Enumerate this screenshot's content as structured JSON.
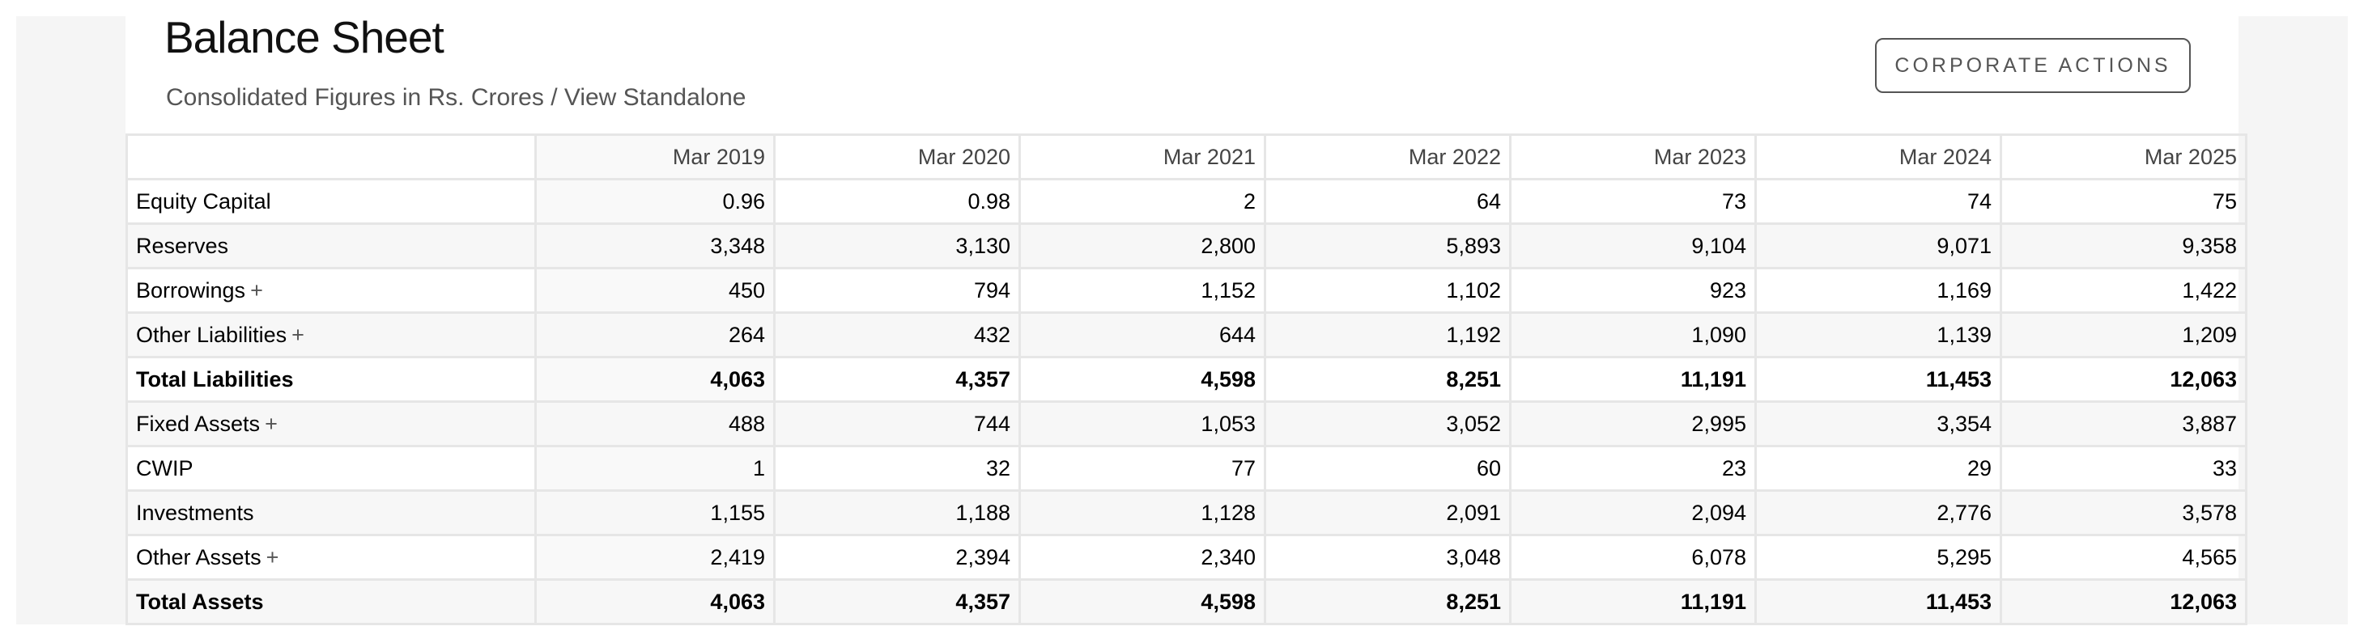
{
  "header": {
    "title": "Balance Sheet",
    "subtitle": "Consolidated Figures in Rs. Crores / View Standalone",
    "corporate_actions_label": "CORPORATE ACTIONS"
  },
  "table": {
    "columns": [
      "Mar 2019",
      "Mar 2020",
      "Mar 2021",
      "Mar 2022",
      "Mar 2023",
      "Mar 2024",
      "Mar 2025"
    ],
    "rows": [
      {
        "label": "Equity Capital",
        "expand": "",
        "values": [
          "0.96",
          "0.98",
          "2",
          "64",
          "73",
          "74",
          "75"
        ]
      },
      {
        "label": "Reserves",
        "expand": "",
        "values": [
          "3,348",
          "3,130",
          "2,800",
          "5,893",
          "9,104",
          "9,071",
          "9,358"
        ]
      },
      {
        "label": "Borrowings",
        "expand": "+",
        "values": [
          "450",
          "794",
          "1,152",
          "1,102",
          "923",
          "1,169",
          "1,422"
        ]
      },
      {
        "label": "Other Liabilities",
        "expand": "+",
        "values": [
          "264",
          "432",
          "644",
          "1,192",
          "1,090",
          "1,139",
          "1,209"
        ]
      },
      {
        "label": "Total Liabilities",
        "expand": "",
        "values": [
          "4,063",
          "4,357",
          "4,598",
          "8,251",
          "11,191",
          "11,453",
          "12,063"
        ]
      },
      {
        "label": "Fixed Assets",
        "expand": "+",
        "values": [
          "488",
          "744",
          "1,053",
          "3,052",
          "2,995",
          "3,354",
          "3,887"
        ]
      },
      {
        "label": "CWIP",
        "expand": "",
        "values": [
          "1",
          "32",
          "77",
          "60",
          "23",
          "29",
          "33"
        ]
      },
      {
        "label": "Investments",
        "expand": "",
        "values": [
          "1,155",
          "1,188",
          "1,128",
          "2,091",
          "2,094",
          "2,776",
          "3,578"
        ]
      },
      {
        "label": "Other Assets",
        "expand": "+",
        "values": [
          "2,419",
          "2,394",
          "2,340",
          "3,048",
          "6,078",
          "5,295",
          "4,565"
        ]
      },
      {
        "label": "Total Assets",
        "expand": "",
        "values": [
          "4,063",
          "4,357",
          "4,598",
          "8,251",
          "11,191",
          "11,453",
          "12,063"
        ]
      }
    ]
  }
}
